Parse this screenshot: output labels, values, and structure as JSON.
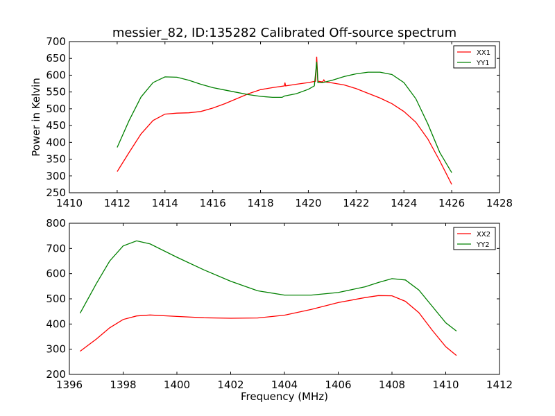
{
  "title": "messier_82, ID:135282 Calibrated Off-source spectrum",
  "chart_data": [
    {
      "type": "line",
      "title": "messier_82, ID:135282 Calibrated Off-source spectrum",
      "xlabel": "",
      "ylabel": "Power in Kelvin",
      "xlim": [
        1410,
        1428
      ],
      "ylim": [
        250,
        700
      ],
      "xticks": [
        1410,
        1412,
        1414,
        1416,
        1418,
        1420,
        1422,
        1424,
        1426,
        1428
      ],
      "yticks": [
        250,
        300,
        350,
        400,
        450,
        500,
        550,
        600,
        650,
        700
      ],
      "legend": "top-right",
      "series": [
        {
          "name": "XX1",
          "color": "#ff0000",
          "x": [
            1412,
            1412.5,
            1413,
            1413.5,
            1414,
            1414.5,
            1415,
            1415.5,
            1416,
            1416.5,
            1417,
            1417.5,
            1418,
            1418.5,
            1419,
            1419.02,
            1419.05,
            1419.5,
            1420,
            1420.3,
            1420.35,
            1420.4,
            1420.6,
            1420.65,
            1420.7,
            1421,
            1421.5,
            1422,
            1422.5,
            1423,
            1423.5,
            1424,
            1424.5,
            1425,
            1425.5,
            1426
          ],
          "y": [
            313,
            370,
            425,
            465,
            484,
            487,
            488,
            492,
            502,
            515,
            530,
            545,
            557,
            563,
            568,
            578,
            568,
            573,
            578,
            582,
            655,
            582,
            580,
            586,
            580,
            577,
            571,
            560,
            546,
            532,
            515,
            492,
            460,
            410,
            345,
            275
          ]
        },
        {
          "name": "YY1",
          "color": "#008000",
          "x": [
            1412,
            1412.5,
            1413,
            1413.5,
            1414,
            1414.5,
            1415,
            1415.5,
            1416,
            1416.5,
            1417,
            1417.5,
            1418,
            1418.5,
            1418.9,
            1419,
            1419.5,
            1420,
            1420.25,
            1420.35,
            1420.4,
            1420.6,
            1421,
            1421.5,
            1422,
            1422.5,
            1423,
            1423.5,
            1424,
            1424.5,
            1425,
            1425.5,
            1426
          ],
          "y": [
            385,
            465,
            535,
            578,
            595,
            594,
            585,
            573,
            563,
            556,
            549,
            542,
            537,
            534,
            534,
            538,
            545,
            558,
            568,
            640,
            578,
            578,
            585,
            596,
            604,
            609,
            609,
            602,
            578,
            530,
            455,
            370,
            310
          ]
        }
      ]
    },
    {
      "type": "line",
      "title": "",
      "xlabel": "Frequency (MHz)",
      "ylabel": "",
      "xlim": [
        1396,
        1412
      ],
      "ylim": [
        200,
        800
      ],
      "xticks": [
        1396,
        1398,
        1400,
        1402,
        1404,
        1406,
        1408,
        1410,
        1412
      ],
      "yticks": [
        200,
        300,
        400,
        500,
        600,
        700,
        800
      ],
      "legend": "top-right",
      "series": [
        {
          "name": "XX2",
          "color": "#ff0000",
          "x": [
            1396.4,
            1397,
            1397.5,
            1398,
            1398.5,
            1399,
            1400,
            1401,
            1402,
            1403,
            1404,
            1405,
            1406,
            1407,
            1407.5,
            1408,
            1408.5,
            1409,
            1409.5,
            1410,
            1410.4
          ],
          "y": [
            292,
            340,
            385,
            418,
            432,
            436,
            430,
            425,
            423,
            424,
            435,
            458,
            485,
            505,
            513,
            512,
            490,
            445,
            375,
            310,
            275
          ]
        },
        {
          "name": "YY2",
          "color": "#008000",
          "x": [
            1396.4,
            1397,
            1397.5,
            1398,
            1398.5,
            1399,
            1400,
            1401,
            1402,
            1403,
            1404,
            1405,
            1406,
            1407,
            1407.5,
            1408,
            1408.5,
            1409,
            1409.5,
            1410,
            1410.4
          ],
          "y": [
            443,
            560,
            650,
            710,
            730,
            718,
            665,
            615,
            570,
            532,
            515,
            515,
            525,
            548,
            565,
            580,
            575,
            535,
            470,
            405,
            372
          ]
        }
      ]
    }
  ]
}
